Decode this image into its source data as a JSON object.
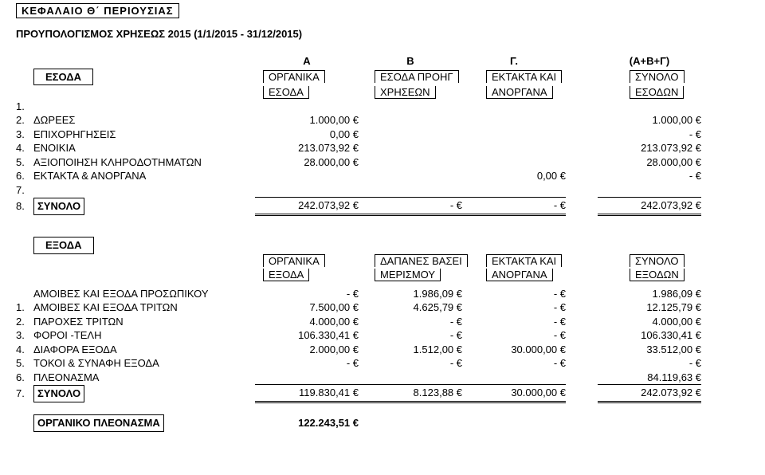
{
  "title": "ΚΕΦΑΛΑΙΟ   Θ΄   ΠΕΡΙΟΥΣΙΑΣ",
  "subtitle": "ΠΡΟΥΠΟΛΟΓΙΣΜΟΣ ΧΡΗΣΕΩΣ 2015 (1/1/2015 - 31/12/2015)",
  "letters": {
    "a": "Α",
    "b": "Β",
    "g": "Γ.",
    "tot": "(Α+Β+Γ)"
  },
  "income": {
    "sideTitle": "ΕΣΟΔΑ",
    "headers": {
      "a1": "ΟΡΓΑΝΙΚΑ",
      "a2": "ΕΣΟΔΑ",
      "b1": "ΕΣΟΔΑ ΠΡΟΗΓ",
      "b2": "ΧΡΗΣΕΩΝ",
      "g1": "ΕΚΤΑΚΤΑ ΚΑΙ",
      "g2": "ΑΝΟΡΓΑΝΑ",
      "t1": "ΣΥΝΟΛΟ",
      "t2": "ΕΣΟΔΩΝ"
    },
    "rows": [
      {
        "n": "1.",
        "label": "",
        "a": "",
        "b": "",
        "g": "",
        "t": ""
      },
      {
        "n": "2.",
        "label": "ΔΩΡΕΕΣ",
        "a": "1.000,00 €",
        "b": "",
        "g": "",
        "t": "1.000,00 €"
      },
      {
        "n": "3.",
        "label": "ΕΠΙΧΟΡΗΓΗΣΕΙΣ",
        "a": "0,00 €",
        "b": "",
        "g": "",
        "t": "-   €"
      },
      {
        "n": "4.",
        "label": "ΕΝΟΙΚΙΑ",
        "a": "213.073,92 €",
        "b": "",
        "g": "",
        "t": "213.073,92 €"
      },
      {
        "n": "5.",
        "label": "ΑΞΙΟΠΟΙΗΣΗ ΚΛΗΡΟΔΟΤΗΜΑΤΩΝ",
        "a": "28.000,00 €",
        "b": "",
        "g": "",
        "t": "28.000,00 €"
      },
      {
        "n": "6.",
        "label": "ΕΚΤΑΚΤΑ & ΑΝΟΡΓΑΝΑ",
        "a": "",
        "b": "",
        "g": "0,00 €",
        "t": "-   €"
      },
      {
        "n": "7.",
        "label": "",
        "a": "",
        "b": "",
        "g": "",
        "t": ""
      }
    ],
    "sum": {
      "n": "8.",
      "label": "ΣΥΝΟΛΟ",
      "a": "242.073,92 €",
      "b": "-   €",
      "g": "-   €",
      "t": "242.073,92 €"
    }
  },
  "expenses": {
    "sideTitle": "ΕΞΟΔΑ",
    "headers": {
      "a1": "ΟΡΓΑΝΙΚΑ",
      "a2": "ΕΞΟΔΑ",
      "b1": "ΔΑΠΑΝΕΣ ΒΑΣΕΙ",
      "b2": "ΜΕΡΙΣΜΟΥ",
      "g1": "ΕΚΤΑΚΤΑ ΚΑΙ",
      "g2": "ΑΝΟΡΓΑΝΑ",
      "t1": "ΣΥΝΟΛΟ",
      "t2": "ΕΞΟΔΩΝ"
    },
    "preRow": {
      "n": "",
      "label": "ΑΜΟΙΒΕΣ ΚΑΙ ΕΞΟΔΑ ΠΡΟΣΩΠΙΚΟΥ",
      "a": "-   €",
      "b": "1.986,09 €",
      "g": "-   €",
      "t": "1.986,09 €"
    },
    "rows": [
      {
        "n": "1.",
        "label": "ΑΜΟΙΒΕΣ ΚΑΙ ΕΞΟΔΑ ΤΡΙΤΩΝ",
        "a": "7.500,00 €",
        "b": "4.625,79 €",
        "g": "-   €",
        "t": "12.125,79 €"
      },
      {
        "n": "2.",
        "label": "ΠΑΡΟΧΕΣ ΤΡΙΤΩΝ",
        "a": "4.000,00 €",
        "b": "-   €",
        "g": "-   €",
        "t": "4.000,00 €"
      },
      {
        "n": "3.",
        "label": "ΦΟΡΟΙ -ΤΕΛΗ",
        "a": "106.330,41 €",
        "b": "-   €",
        "g": "-   €",
        "t": "106.330,41 €"
      },
      {
        "n": "4.",
        "label": "ΔΙΑΦΟΡΑ ΕΞΟΔΑ",
        "a": "2.000,00 €",
        "b": "1.512,00 €",
        "g": "30.000,00 €",
        "t": "33.512,00 €"
      },
      {
        "n": "5.",
        "label": "ΤΟΚΟΙ & ΣΥΝΑΦΗ ΕΞΟΔΑ",
        "a": "-   €",
        "b": "-   €",
        "g": "-   €",
        "t": "-   €"
      },
      {
        "n": "6.",
        "label": "ΠΛΕΟΝΑΣΜΑ",
        "a": "",
        "b": "",
        "g": "",
        "t": "84.119,63 €"
      }
    ],
    "sum": {
      "n": "7.",
      "label": "ΣΥΝΟΛΟ",
      "a": "119.830,41 €",
      "b": "8.123,88 €",
      "g": "30.000,00 €",
      "t": "242.073,92 €"
    }
  },
  "footer": {
    "label": "ΟΡΓΑΝΙΚΟ ΠΛΕΟΝΑΣΜΑ",
    "value": "122.243,51 €"
  }
}
